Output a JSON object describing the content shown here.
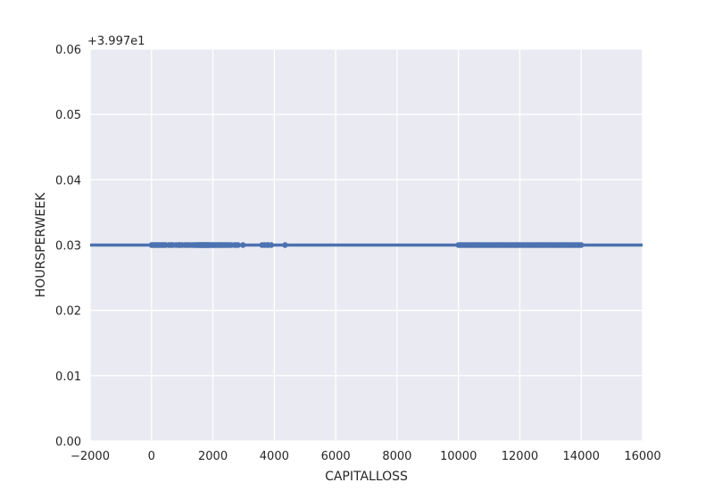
{
  "chart_data": {
    "type": "scatter",
    "xlabel": "CAPITALLOSS",
    "ylabel": "HOURSPERWEEK",
    "y_offset_label": "+3.997e1",
    "xlim": [
      -2000,
      16000
    ],
    "ylim": [
      0.0,
      0.06
    ],
    "x_ticks": [
      "−2000",
      "0",
      "2000",
      "4000",
      "6000",
      "8000",
      "10000",
      "12000",
      "14000",
      "16000"
    ],
    "y_ticks": [
      "0.00",
      "0.01",
      "0.02",
      "0.03",
      "0.04",
      "0.05",
      "0.06"
    ],
    "grid": true,
    "background": "#eaeaf2",
    "grid_color": "#ffffff",
    "series_color": "#4c72b0",
    "regression_line": {
      "y": 0.03
    },
    "points": {
      "y": 0.03,
      "x": [
        0,
        30,
        80,
        120,
        160,
        200,
        250,
        300,
        340,
        380,
        420,
        460,
        560,
        620,
        650,
        700,
        800,
        880,
        900,
        950,
        1000,
        1090,
        1140,
        1200,
        1260,
        1340,
        1400,
        1430,
        1460,
        1500,
        1530,
        1560,
        1580,
        1600,
        1620,
        1640,
        1660,
        1680,
        1700,
        1720,
        1740,
        1760,
        1780,
        1800,
        1820,
        1840,
        1860,
        1880,
        1900,
        1950,
        1980,
        2000,
        2040,
        2080,
        2120,
        2160,
        2200,
        2240,
        2260,
        2300,
        2340,
        2380,
        2420,
        2460,
        2500,
        2560,
        2600,
        2700,
        2760,
        2820,
        2980,
        3600,
        3680,
        3770,
        3800,
        3900,
        4350,
        10000,
        10050,
        10100,
        10150,
        10200,
        10250,
        10300,
        10350,
        10400,
        10450,
        10500,
        10550,
        10600,
        10650,
        10700,
        10750,
        10800,
        10850,
        10900,
        10950,
        11000,
        11050,
        11100,
        11150,
        11200,
        11250,
        11300,
        11350,
        11400,
        11450,
        11500,
        11550,
        11600,
        11650,
        11700,
        11750,
        11800,
        11850,
        11900,
        11950,
        12000,
        12050,
        12100,
        12150,
        12200,
        12250,
        12300,
        12350,
        12400,
        12450,
        12500,
        12550,
        12600,
        12650,
        12700,
        12750,
        12800,
        12850,
        12900,
        12950,
        13000,
        13050,
        13100,
        13150,
        13200,
        13250,
        13300,
        13350,
        13400,
        13450,
        13500,
        13550,
        13600,
        13650,
        13700,
        13750,
        13800,
        13850,
        13900,
        13950,
        14000
      ]
    }
  }
}
